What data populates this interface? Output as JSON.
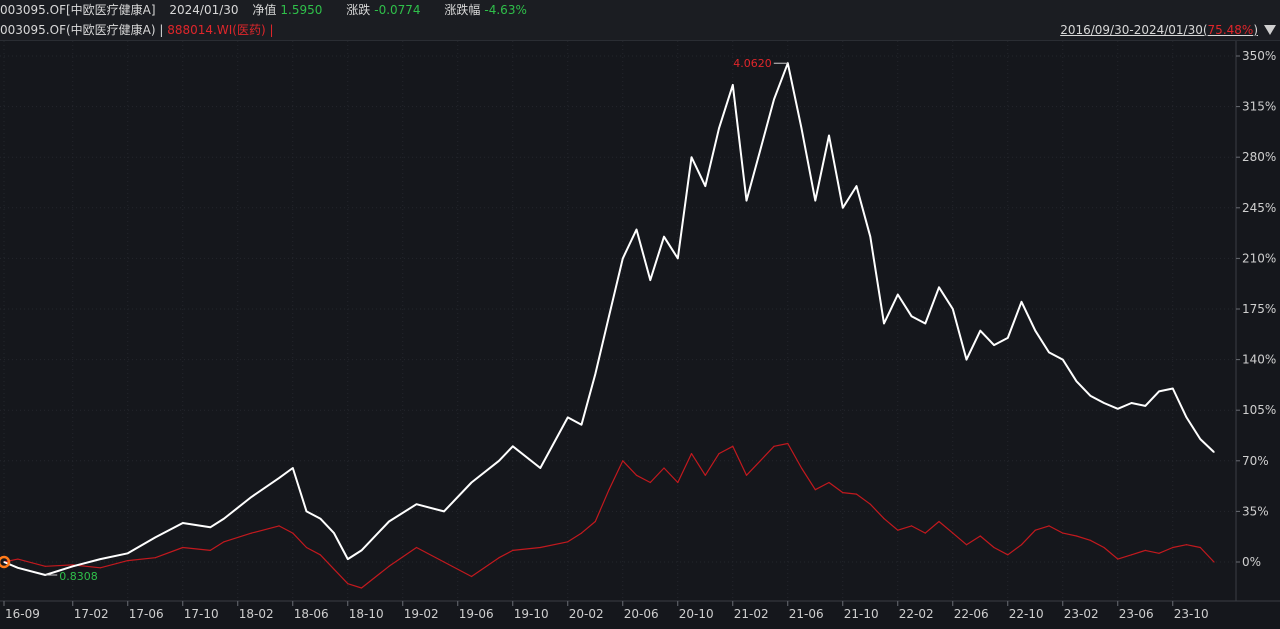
{
  "header": {
    "code_name": "003095.OF[中欧医疗健康A]",
    "date": "2024/01/30",
    "nav_label": "净值",
    "nav_value": "1.5950",
    "change_label": "涨跌",
    "change_value": "-0.0774",
    "pct_label": "涨跌幅",
    "pct_value": "-4.63%"
  },
  "legend": {
    "fund": "003095.OF(中欧医疗健康A)",
    "sep": "|",
    "index": "888014.WI(医药)",
    "sep2": "|",
    "range_prefix": "2016/09/30-2024/01/30(",
    "range_pct": "75.48%",
    "range_suffix": ")"
  },
  "colors": {
    "fund": "#ffffff",
    "index": "#c2191e",
    "bg": "#15171c",
    "up": "#e0262b",
    "down": "#2fbf4a"
  },
  "chart_data": {
    "type": "line",
    "x_ticks": [
      "16-09",
      "17-02",
      "17-06",
      "17-10",
      "18-02",
      "18-06",
      "18-10",
      "19-02",
      "19-06",
      "19-10",
      "20-02",
      "20-06",
      "20-10",
      "21-02",
      "21-06",
      "21-10",
      "22-02",
      "22-06",
      "22-10",
      "23-02",
      "23-06",
      "23-10"
    ],
    "y_ticks": [
      "350%",
      "315%",
      "280%",
      "245%",
      "210%",
      "175%",
      "140%",
      "105%",
      "70%",
      "35%",
      "0%"
    ],
    "ylim": [
      -28,
      350
    ],
    "grid": true,
    "annotations": {
      "max": "4.0620",
      "min": "0.8308"
    },
    "series": [
      {
        "name": "003095.OF(中欧医疗健康A)",
        "x": [
          "2016-09",
          "2016-10",
          "2016-12",
          "2017-02",
          "2017-04",
          "2017-06",
          "2017-08",
          "2017-10",
          "2017-12",
          "2018-01",
          "2018-03",
          "2018-05",
          "2018-06",
          "2018-07",
          "2018-08",
          "2018-09",
          "2018-10",
          "2018-11",
          "2019-01",
          "2019-03",
          "2019-05",
          "2019-07",
          "2019-09",
          "2019-10",
          "2019-12",
          "2020-02",
          "2020-03",
          "2020-04",
          "2020-05",
          "2020-06",
          "2020-07",
          "2020-08",
          "2020-09",
          "2020-10",
          "2020-11",
          "2020-12",
          "2021-01",
          "2021-02",
          "2021-03",
          "2021-04",
          "2021-05",
          "2021-06",
          "2021-07",
          "2021-08",
          "2021-09",
          "2021-10",
          "2021-11",
          "2021-12",
          "2022-01",
          "2022-02",
          "2022-03",
          "2022-04",
          "2022-05",
          "2022-06",
          "2022-07",
          "2022-08",
          "2022-09",
          "2022-10",
          "2022-11",
          "2022-12",
          "2023-01",
          "2023-02",
          "2023-03",
          "2023-04",
          "2023-05",
          "2023-06",
          "2023-07",
          "2023-08",
          "2023-09",
          "2023-10",
          "2023-11",
          "2023-12",
          "2024-01"
        ],
        "values": [
          0,
          -4,
          -9,
          -3,
          2,
          6,
          17,
          27,
          24,
          30,
          45,
          58,
          65,
          35,
          30,
          20,
          2,
          8,
          28,
          40,
          35,
          55,
          70,
          80,
          65,
          100,
          95,
          130,
          170,
          210,
          230,
          195,
          225,
          210,
          280,
          260,
          300,
          330,
          250,
          285,
          320,
          345,
          300,
          250,
          295,
          245,
          260,
          225,
          165,
          185,
          170,
          165,
          190,
          175,
          140,
          160,
          150,
          155,
          180,
          160,
          145,
          140,
          125,
          115,
          110,
          106,
          110,
          108,
          118,
          120,
          100,
          85,
          76
        ]
      },
      {
        "name": "888014.WI(医药)",
        "x": [
          "2016-09",
          "2016-10",
          "2016-12",
          "2017-02",
          "2017-04",
          "2017-06",
          "2017-08",
          "2017-10",
          "2017-12",
          "2018-01",
          "2018-03",
          "2018-05",
          "2018-06",
          "2018-07",
          "2018-08",
          "2018-09",
          "2018-10",
          "2018-11",
          "2019-01",
          "2019-03",
          "2019-05",
          "2019-07",
          "2019-09",
          "2019-10",
          "2019-12",
          "2020-02",
          "2020-03",
          "2020-04",
          "2020-05",
          "2020-06",
          "2020-07",
          "2020-08",
          "2020-09",
          "2020-10",
          "2020-11",
          "2020-12",
          "2021-01",
          "2021-02",
          "2021-03",
          "2021-04",
          "2021-05",
          "2021-06",
          "2021-07",
          "2021-08",
          "2021-09",
          "2021-10",
          "2021-11",
          "2021-12",
          "2022-01",
          "2022-02",
          "2022-03",
          "2022-04",
          "2022-05",
          "2022-06",
          "2022-07",
          "2022-08",
          "2022-09",
          "2022-10",
          "2022-11",
          "2022-12",
          "2023-01",
          "2023-02",
          "2023-03",
          "2023-04",
          "2023-05",
          "2023-06",
          "2023-07",
          "2023-08",
          "2023-09",
          "2023-10",
          "2023-11",
          "2023-12",
          "2024-01"
        ],
        "values": [
          0,
          2,
          -3,
          -2,
          -4,
          1,
          3,
          10,
          8,
          14,
          20,
          25,
          20,
          10,
          5,
          -5,
          -15,
          -18,
          -3,
          10,
          0,
          -10,
          3,
          8,
          10,
          14,
          20,
          28,
          50,
          70,
          60,
          55,
          65,
          55,
          75,
          60,
          75,
          80,
          60,
          70,
          80,
          82,
          65,
          50,
          55,
          48,
          47,
          40,
          30,
          22,
          25,
          20,
          28,
          20,
          12,
          18,
          10,
          5,
          12,
          22,
          25,
          20,
          18,
          15,
          10,
          2,
          5,
          8,
          6,
          10,
          12,
          10,
          0
        ]
      }
    ]
  }
}
